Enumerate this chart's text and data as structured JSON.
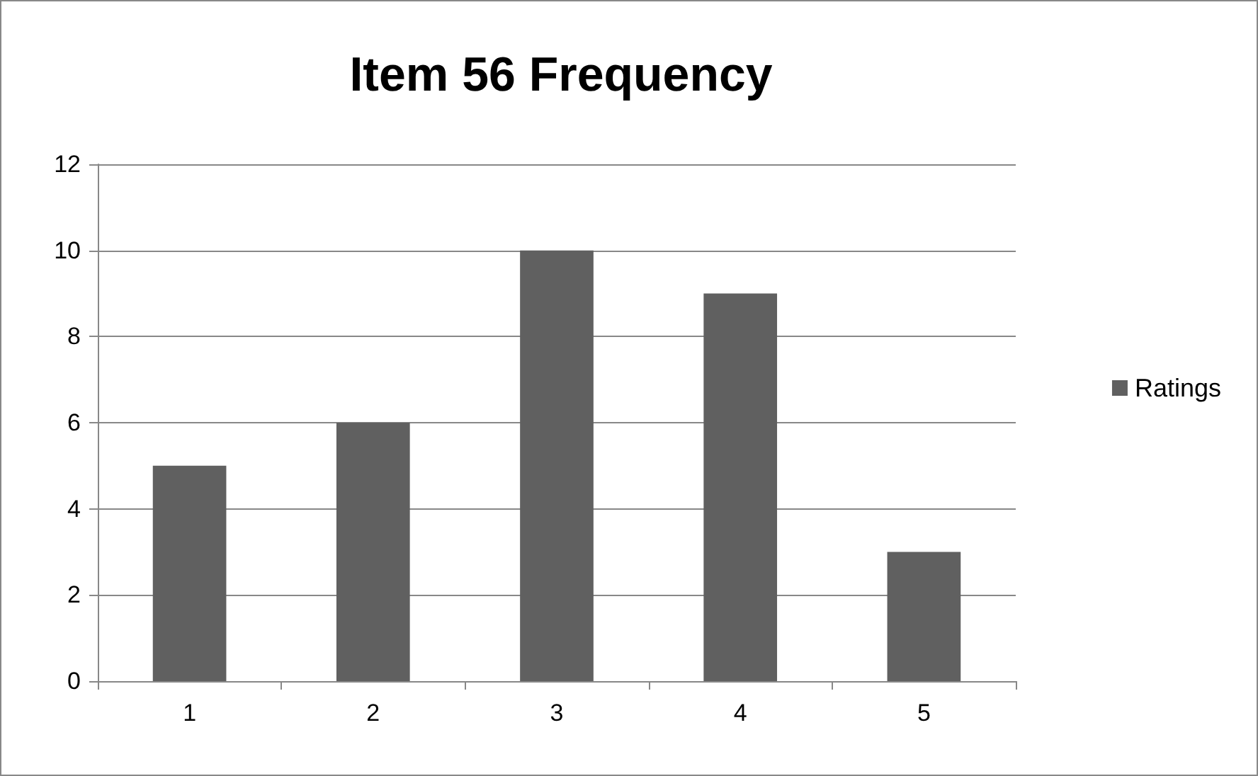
{
  "chart_data": {
    "type": "bar",
    "title": "Item 56 Frequency",
    "categories": [
      "1",
      "2",
      "3",
      "4",
      "5"
    ],
    "series": [
      {
        "name": "Ratings",
        "color": "#606060",
        "values": [
          5,
          6,
          10,
          9,
          3
        ]
      }
    ],
    "ylim": [
      0,
      12
    ],
    "yticks": [
      0,
      2,
      4,
      6,
      8,
      10,
      12
    ],
    "grid": "y",
    "legend": "right"
  }
}
